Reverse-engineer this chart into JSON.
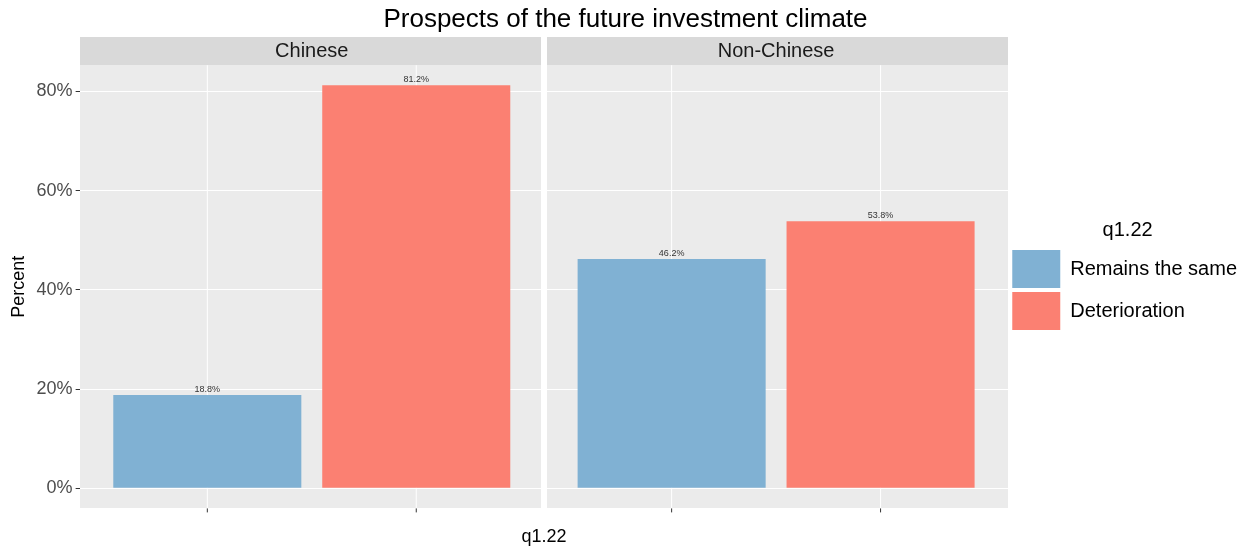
{
  "chart_data": {
    "type": "bar",
    "title": "Prospects of the future investment climate",
    "xlabel": "q1.22",
    "ylabel": "Percent",
    "legend_title": "q1.22",
    "categories": [
      "Chinese",
      "Non-Chinese"
    ],
    "series": [
      {
        "name": "Remains the same",
        "color": "#80b1d3",
        "values": [
          18.8,
          46.2
        ],
        "value_labels": [
          "18.8%",
          "46.2%"
        ]
      },
      {
        "name": "Deterioration",
        "color": "#fb8072",
        "values": [
          81.2,
          53.8
        ],
        "value_labels": [
          "81.2%",
          "53.8%"
        ]
      }
    ],
    "ylim": [
      -4.06,
      85.26
    ],
    "yticks": [
      {
        "value": 0,
        "label": "0%"
      },
      {
        "value": 20,
        "label": "20%"
      },
      {
        "value": 40,
        "label": "40%"
      },
      {
        "value": 60,
        "label": "60%"
      },
      {
        "value": 80,
        "label": "80%"
      }
    ],
    "grid": true,
    "legend": "right"
  }
}
